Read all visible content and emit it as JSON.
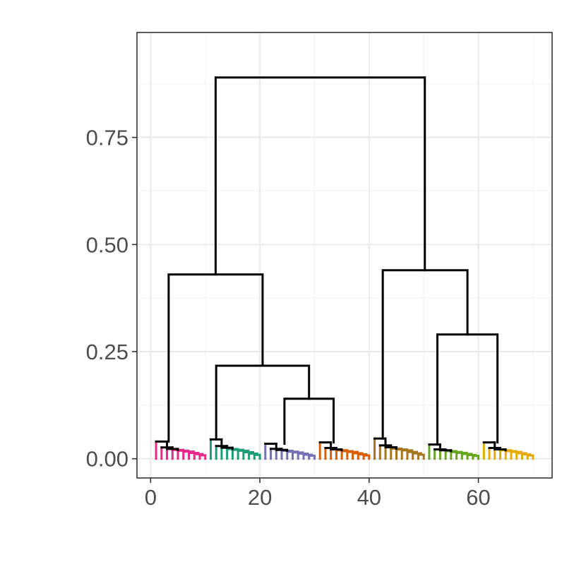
{
  "chart_data": {
    "type": "dendrogram",
    "title": "",
    "xlabel": "",
    "ylabel": "",
    "xlim": [
      -2.5,
      73.5
    ],
    "ylim": [
      -0.045,
      0.995
    ],
    "x_ticks": [
      0,
      20,
      40,
      60
    ],
    "x_tick_labels": [
      "0",
      "20",
      "40",
      "60"
    ],
    "y_ticks": [
      0.0,
      0.25,
      0.5,
      0.75
    ],
    "y_tick_labels": [
      "0.00",
      "0.25",
      "0.50",
      "0.75"
    ],
    "grid": true,
    "theme": "bw",
    "colors": {
      "clusters": [
        "#e7298a",
        "#1b9e77",
        "#7570b3",
        "#d95f02",
        "#a6761d",
        "#66a61e",
        "#e6ab02"
      ],
      "merge": "#000000"
    },
    "clusters": [
      {
        "x_start": 1,
        "leaves": 10,
        "color_index": 0,
        "top": 0.04
      },
      {
        "x_start": 11,
        "leaves": 10,
        "color_index": 1,
        "top": 0.045
      },
      {
        "x_start": 21,
        "leaves": 10,
        "color_index": 2,
        "top": 0.035
      },
      {
        "x_start": 31,
        "leaves": 10,
        "color_index": 3,
        "top": 0.038
      },
      {
        "x_start": 41,
        "leaves": 10,
        "color_index": 4,
        "top": 0.047
      },
      {
        "x_start": 51,
        "leaves": 10,
        "color_index": 5,
        "top": 0.033
      },
      {
        "x_start": 61,
        "leaves": 10,
        "color_index": 6,
        "top": 0.038
      }
    ],
    "merges": [
      {
        "left_x": 24.5,
        "left_h": 0.035,
        "right_x": 33.5,
        "right_h": 0.038,
        "height": 0.14
      },
      {
        "left_x": 12.0,
        "left_h": 0.045,
        "right_x": 29.0,
        "right_h": 0.14,
        "height": 0.217
      },
      {
        "left_x": 3.3,
        "left_h": 0.04,
        "right_x": 20.5,
        "right_h": 0.217,
        "height": 0.43
      },
      {
        "left_x": 52.5,
        "left_h": 0.033,
        "right_x": 63.5,
        "right_h": 0.038,
        "height": 0.29
      },
      {
        "left_x": 42.5,
        "left_h": 0.047,
        "right_x": 58.0,
        "right_h": 0.29,
        "height": 0.44
      },
      {
        "left_x": 11.9,
        "left_h": 0.43,
        "right_x": 50.2,
        "right_h": 0.44,
        "height": 0.89
      }
    ]
  }
}
